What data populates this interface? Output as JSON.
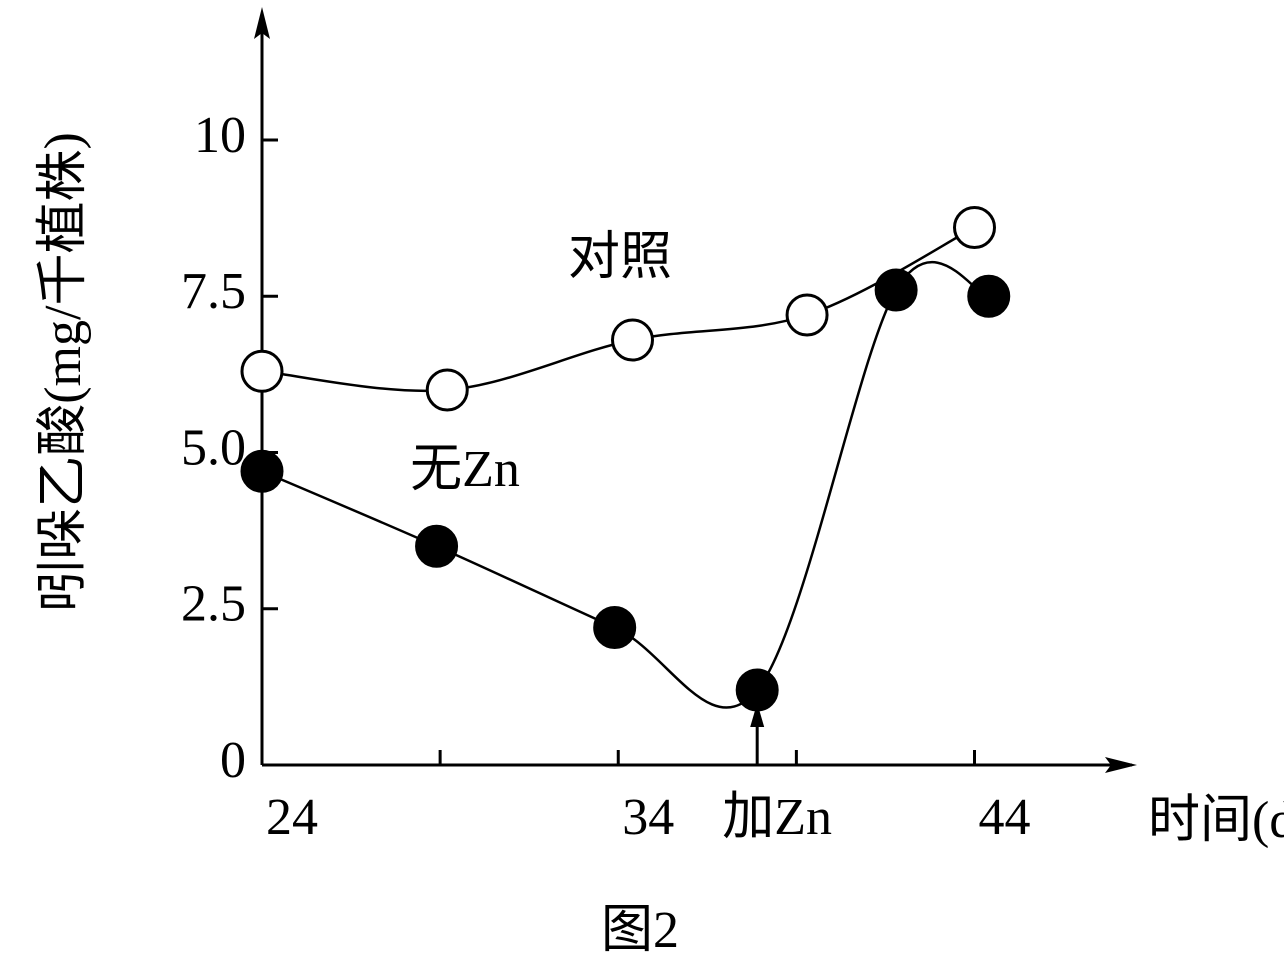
{
  "chart_data": {
    "type": "line",
    "y_label": "吲哚乙酸(mg/千植株)",
    "x_label": "时间(d)",
    "caption": "图2",
    "xlim": [
      24,
      48
    ],
    "ylim": [
      0,
      12
    ],
    "xticks": [
      24,
      34,
      44
    ],
    "xminorticks": [
      29,
      39
    ],
    "yticks": [
      0,
      2.5,
      {
        "value": 5,
        "label": "5.0"
      },
      7.5,
      10
    ],
    "annotation": {
      "text": "加Zn",
      "x": 37.9
    },
    "series": [
      {
        "name": "对照",
        "marker": "open",
        "color": "#000000",
        "x": [
          24,
          29.2,
          34.4,
          39.3,
          44
        ],
        "values": [
          6.3,
          6.0,
          6.8,
          7.2,
          8.6
        ]
      },
      {
        "name": "无Zn",
        "marker": "filled",
        "color": "#000000",
        "x": [
          24,
          28.9,
          33.9,
          37.9,
          41.8,
          44.4
        ],
        "values": [
          4.7,
          3.5,
          2.2,
          1.2,
          7.6,
          7.5
        ]
      }
    ]
  }
}
